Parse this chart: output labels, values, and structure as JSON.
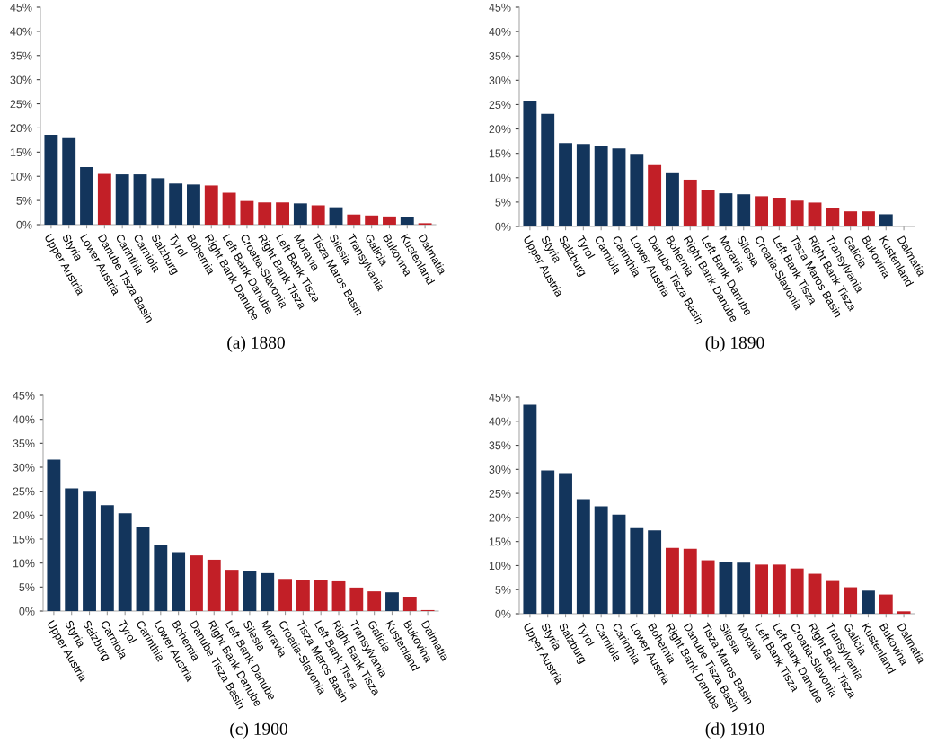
{
  "chart_data": [
    {
      "type": "bar",
      "title": "(a) 1880",
      "categories": [
        "Upper Austria",
        "Styria",
        "Lower Austria",
        "Danube Tisza Basin",
        "Carinthia",
        "Carniola",
        "Salzburg",
        "Tyrol",
        "Bohemia",
        "Right Bank Danube",
        "Left Bank Danube",
        "Croatia-Slavonia",
        "Right Bank Tisza",
        "Left Bank Tisza",
        "Moravia",
        "Tisza Maros Basin",
        "Silesia",
        "Transylvania",
        "Galicia",
        "Bukovina",
        "Kustenland",
        "Dalmatia"
      ],
      "values": [
        18.6,
        17.9,
        11.9,
        10.5,
        10.4,
        10.4,
        9.6,
        8.5,
        8.3,
        8.1,
        6.6,
        4.9,
        4.6,
        4.6,
        4.4,
        4.0,
        3.6,
        2.1,
        1.9,
        1.7,
        1.6,
        0.3
      ],
      "colors": [
        "#13355c",
        "#13355c",
        "#13355c",
        "#c21f27",
        "#13355c",
        "#13355c",
        "#13355c",
        "#13355c",
        "#13355c",
        "#c21f27",
        "#c21f27",
        "#c21f27",
        "#c21f27",
        "#c21f27",
        "#13355c",
        "#c21f27",
        "#13355c",
        "#c21f27",
        "#c21f27",
        "#c21f27",
        "#13355c",
        "#c21f27"
      ],
      "ylim": [
        0,
        45
      ],
      "yticks": [
        {
          "value": 0,
          "label": "0%"
        },
        {
          "value": 5,
          "label": "5%"
        },
        {
          "value": 10,
          "label": "10%"
        },
        {
          "value": 15,
          "label": "15%"
        },
        {
          "value": 20,
          "label": "20%"
        },
        {
          "value": 25,
          "label": "25%"
        },
        {
          "value": 30,
          "label": "30%"
        },
        {
          "value": 35,
          "label": "35%"
        },
        {
          "value": 40,
          "label": "40%"
        },
        {
          "value": 45,
          "label": "45%"
        }
      ],
      "grid": false,
      "legend": false
    },
    {
      "type": "bar",
      "title": "(b) 1890",
      "categories": [
        "Upper Austria",
        "Styria",
        "Salzburg",
        "Tyrol",
        "Carniola",
        "Carinthia",
        "Lower Austria",
        "Danube Tisza Basin",
        "Bohemia",
        "Right Bank Danube",
        "Left Bank Danube",
        "Moravia",
        "Silesia",
        "Croatia-Slavonia",
        "Left Bank Tisza",
        "Tisza Maros Basin",
        "Right Bank Tisza",
        "Transylvania",
        "Galicia",
        "Bukovina",
        "Kustenland",
        "Dalmatia"
      ],
      "values": [
        25.8,
        23.1,
        17.1,
        16.9,
        16.5,
        16.0,
        14.9,
        12.6,
        11.1,
        9.6,
        7.4,
        6.8,
        6.6,
        6.2,
        5.9,
        5.3,
        4.9,
        3.8,
        3.1,
        3.1,
        2.5,
        0.1
      ],
      "colors": [
        "#13355c",
        "#13355c",
        "#13355c",
        "#13355c",
        "#13355c",
        "#13355c",
        "#13355c",
        "#c21f27",
        "#13355c",
        "#c21f27",
        "#c21f27",
        "#13355c",
        "#13355c",
        "#c21f27",
        "#c21f27",
        "#c21f27",
        "#c21f27",
        "#c21f27",
        "#c21f27",
        "#c21f27",
        "#13355c",
        "#c21f27"
      ],
      "ylim": [
        0,
        45
      ],
      "yticks": [
        {
          "value": 0,
          "label": "0%"
        },
        {
          "value": 5,
          "label": "5%"
        },
        {
          "value": 10,
          "label": "10%"
        },
        {
          "value": 15,
          "label": "15%"
        },
        {
          "value": 20,
          "label": "20%"
        },
        {
          "value": 25,
          "label": "25%"
        },
        {
          "value": 30,
          "label": "30%"
        },
        {
          "value": 35,
          "label": "35%"
        },
        {
          "value": 40,
          "label": "40%"
        },
        {
          "value": 45,
          "label": "45%"
        }
      ],
      "grid": false,
      "legend": false
    },
    {
      "type": "bar",
      "title": "(c) 1900",
      "categories": [
        "Upper Austria",
        "Styria",
        "Salzburg",
        "Carniola",
        "Tyrol",
        "Carinthia",
        "Lower Austria",
        "Bohemia",
        "Danube Tisza Basin",
        "Right Bank Danube",
        "Left Bank Danube",
        "Silesia",
        "Moravia",
        "Croatia-Slavonia",
        "Tisza Maros Basin",
        "Left Bank Tisza",
        "Right Bank Tisza",
        "Transylvania",
        "Galicia",
        "Kustenland",
        "Bukovina",
        "Dalmatia"
      ],
      "values": [
        31.6,
        25.6,
        25.1,
        22.1,
        20.4,
        17.6,
        13.8,
        12.3,
        11.6,
        10.7,
        8.6,
        8.4,
        7.9,
        6.7,
        6.5,
        6.4,
        6.2,
        4.9,
        4.1,
        3.9,
        3.0,
        0.2
      ],
      "colors": [
        "#13355c",
        "#13355c",
        "#13355c",
        "#13355c",
        "#13355c",
        "#13355c",
        "#13355c",
        "#13355c",
        "#c21f27",
        "#c21f27",
        "#c21f27",
        "#13355c",
        "#13355c",
        "#c21f27",
        "#c21f27",
        "#c21f27",
        "#c21f27",
        "#c21f27",
        "#c21f27",
        "#13355c",
        "#c21f27",
        "#c21f27"
      ],
      "ylim": [
        0,
        45
      ],
      "yticks": [
        {
          "value": 0,
          "label": "0%"
        },
        {
          "value": 5,
          "label": "5%"
        },
        {
          "value": 10,
          "label": "10%"
        },
        {
          "value": 15,
          "label": "15%"
        },
        {
          "value": 20,
          "label": "20%"
        },
        {
          "value": 25,
          "label": "25%"
        },
        {
          "value": 30,
          "label": "30%"
        },
        {
          "value": 35,
          "label": "35%"
        },
        {
          "value": 40,
          "label": "40%"
        },
        {
          "value": 45,
          "label": "45%"
        }
      ],
      "grid": false,
      "legend": false
    },
    {
      "type": "bar",
      "title": "(d) 1910",
      "categories": [
        "Upper Austria",
        "Styria",
        "Salzburg",
        "Tyrol",
        "Carniola",
        "Carinthia",
        "Lower Austria",
        "Bohemia",
        "Right Bank Danube",
        "Danube Tisza Basin",
        "Tisza Maros Basin",
        "Silesia",
        "Moravia",
        "Left Bank Tisza",
        "Left Bank Danube",
        "Croatia-Slavonia",
        "Right Bank Tisza",
        "Transylvania",
        "Galicia",
        "Kustenland",
        "Bukovina",
        "Dalmatia"
      ],
      "values": [
        43.4,
        29.8,
        29.2,
        23.8,
        22.3,
        20.6,
        17.8,
        17.3,
        13.7,
        13.5,
        11.1,
        10.8,
        10.6,
        10.2,
        10.2,
        9.4,
        8.3,
        6.8,
        5.5,
        4.8,
        4.0,
        0.5
      ],
      "colors": [
        "#13355c",
        "#13355c",
        "#13355c",
        "#13355c",
        "#13355c",
        "#13355c",
        "#13355c",
        "#13355c",
        "#c21f27",
        "#c21f27",
        "#c21f27",
        "#13355c",
        "#13355c",
        "#c21f27",
        "#c21f27",
        "#c21f27",
        "#c21f27",
        "#c21f27",
        "#c21f27",
        "#13355c",
        "#c21f27",
        "#c21f27"
      ],
      "ylim": [
        0,
        45
      ],
      "yticks": [
        {
          "value": 0,
          "label": "0%"
        },
        {
          "value": 5,
          "label": "5%"
        },
        {
          "value": 10,
          "label": "10%"
        },
        {
          "value": 15,
          "label": "15%"
        },
        {
          "value": 20,
          "label": "20%"
        },
        {
          "value": 25,
          "label": "25%"
        },
        {
          "value": 30,
          "label": "30%"
        },
        {
          "value": 35,
          "label": "35%"
        },
        {
          "value": 40,
          "label": "40%"
        },
        {
          "value": 45,
          "label": "45%"
        }
      ],
      "grid": false,
      "legend": false
    }
  ]
}
